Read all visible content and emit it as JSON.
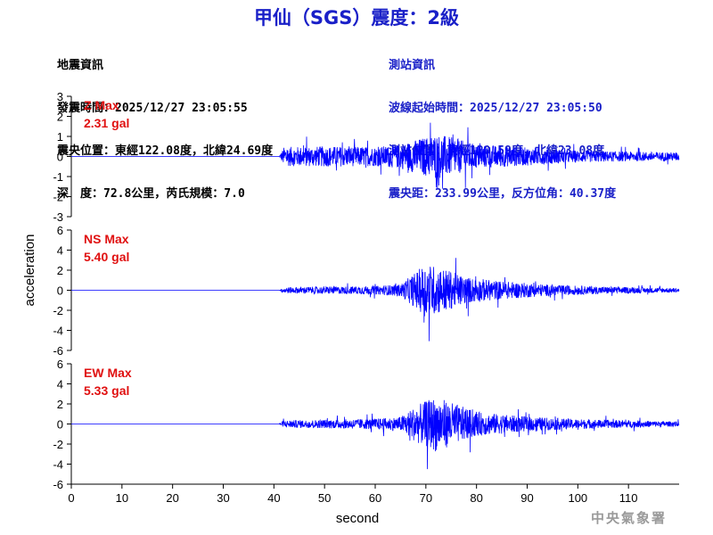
{
  "title": "甲仙（SGS）震度：2級",
  "event_info": {
    "heading": "地震資訊",
    "origin_time": "發震時間：2025/12/27 23:05:55",
    "epicenter": "震央位置：東經122.08度，北緯24.69度",
    "depth_magnitude": "深　度：72.8公里，芮氏規模：7.0"
  },
  "station_info": {
    "heading": "測站資訊",
    "wave_start": "波線起始時間：2025/12/27 23:05:50",
    "location": "測站位置：東經120.59度，北緯23.08度",
    "distance": "震央距：233.99公里，反方位角：40.37度"
  },
  "agency": "中央氣象署",
  "colors": {
    "title": "#1a20c8",
    "trace": "#0000ff",
    "max_label": "#e01010",
    "agency": "#9a9a9a"
  },
  "chart_data": {
    "type": "line",
    "xlabel": "second",
    "ylabel": "acceleration",
    "xlim": [
      0,
      120
    ],
    "x_ticks": [
      0,
      10,
      20,
      30,
      40,
      50,
      60,
      70,
      80,
      90,
      100,
      110
    ],
    "panels": [
      {
        "name": "Z",
        "max_label": "Z Max",
        "max_value": "2.31 gal",
        "ylim": [
          -3,
          3
        ],
        "y_ticks": [
          -3,
          -2,
          -1,
          0,
          1,
          2,
          3
        ],
        "envelope": [
          [
            0,
            0
          ],
          [
            41,
            0
          ],
          [
            42,
            0.8
          ],
          [
            50,
            0.85
          ],
          [
            60,
            0.8
          ],
          [
            65,
            1.0
          ],
          [
            68,
            1.4
          ],
          [
            72,
            1.9
          ],
          [
            75,
            1.6
          ],
          [
            80,
            1.0
          ],
          [
            90,
            0.75
          ],
          [
            100,
            0.5
          ],
          [
            110,
            0.4
          ],
          [
            120,
            0.35
          ]
        ]
      },
      {
        "name": "NS",
        "max_label": "NS Max",
        "max_value": "5.40 gal",
        "ylim": [
          -6,
          6
        ],
        "y_ticks": [
          -6,
          -4,
          -2,
          0,
          2,
          4,
          6
        ],
        "envelope": [
          [
            0,
            0
          ],
          [
            41,
            0
          ],
          [
            42,
            0.5
          ],
          [
            50,
            0.6
          ],
          [
            60,
            0.7
          ],
          [
            65,
            1.0
          ],
          [
            68,
            3.0
          ],
          [
            70,
            4.5
          ],
          [
            73,
            3.8
          ],
          [
            78,
            2.2
          ],
          [
            85,
            1.5
          ],
          [
            95,
            0.9
          ],
          [
            105,
            0.6
          ],
          [
            120,
            0.35
          ]
        ]
      },
      {
        "name": "EW",
        "max_label": "EW Max",
        "max_value": "5.33 gal",
        "ylim": [
          -6,
          6
        ],
        "y_ticks": [
          -6,
          -4,
          -2,
          0,
          2,
          4,
          6
        ],
        "envelope": [
          [
            0,
            0
          ],
          [
            41,
            0
          ],
          [
            42,
            0.6
          ],
          [
            50,
            0.7
          ],
          [
            60,
            0.9
          ],
          [
            65,
            1.2
          ],
          [
            68,
            3.0
          ],
          [
            72,
            4.6
          ],
          [
            75,
            3.6
          ],
          [
            80,
            2.0
          ],
          [
            90,
            1.2
          ],
          [
            100,
            0.8
          ],
          [
            120,
            0.4
          ]
        ]
      }
    ]
  }
}
